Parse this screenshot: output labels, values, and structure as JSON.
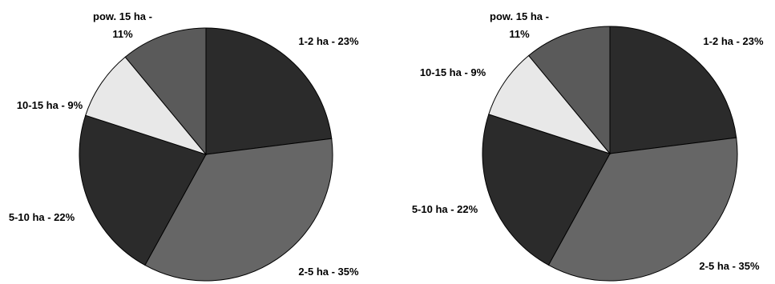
{
  "chart_data": [
    {
      "type": "pie",
      "title": "",
      "slices": [
        {
          "label": "1-2 ha - 23%",
          "value": 23,
          "color": "#2b2b2b"
        },
        {
          "label": "2-5 ha - 35%",
          "value": 35,
          "color": "#666666"
        },
        {
          "label": "5-10 ha - 22%",
          "value": 22,
          "color": "#2b2b2b"
        },
        {
          "label": "10-15 ha - 9%",
          "value": 9,
          "color": "#e8e8e8"
        },
        {
          "label": "pow. 15 ha - 11%",
          "label_lines": [
            "pow. 15 ha -",
            "11%"
          ],
          "value": 11,
          "color": "#5a5a5a"
        }
      ]
    },
    {
      "type": "pie",
      "title": "",
      "slices": [
        {
          "label": "1-2 ha - 23%",
          "value": 23,
          "color": "#2b2b2b"
        },
        {
          "label": "2-5 ha - 35%",
          "value": 35,
          "color": "#666666"
        },
        {
          "label": "5-10 ha - 22%",
          "value": 22,
          "color": "#2b2b2b"
        },
        {
          "label": "10-15 ha - 9%",
          "value": 9,
          "color": "#e8e8e8"
        },
        {
          "label": "pow. 15 ha - 11%",
          "label_lines": [
            "pow. 15 ha -",
            "11%"
          ],
          "value": 11,
          "color": "#5a5a5a"
        }
      ]
    }
  ]
}
